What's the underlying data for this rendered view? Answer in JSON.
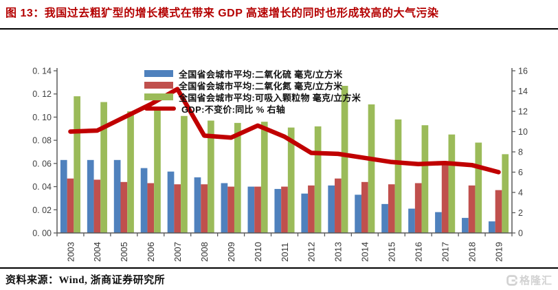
{
  "header": {
    "title": "图 13：我国过去粗犷型的增长模式在带来 GDP 高速增长的同时也形成较高的大气污染",
    "title_color": "#b40000"
  },
  "footer": {
    "source": "资料来源：Wind, 浙商证券研究所",
    "logo_text": "格隆汇"
  },
  "chart_data": {
    "type": "bar",
    "title": "图 13：我国过去粗犷型的增长模式在带来 GDP 高速增长的同时也形成较高的大气污染",
    "categories": [
      "2003",
      "2004",
      "2005",
      "2006",
      "2007",
      "2008",
      "2009",
      "2010",
      "2011",
      "2012",
      "2013",
      "2014",
      "2015",
      "2016",
      "2017",
      "2018",
      "2019"
    ],
    "series": [
      {
        "name": "全国省会城市平均:二氧化硫 毫克/立方米",
        "type": "bar",
        "axis": "left",
        "color": "#4f81bd",
        "values": [
          0.063,
          0.063,
          0.063,
          0.056,
          0.053,
          0.048,
          0.043,
          0.04,
          0.038,
          0.034,
          0.041,
          0.033,
          0.025,
          0.021,
          0.018,
          0.013,
          0.01
        ]
      },
      {
        "name": "全国省会城市平均:二氧化氮 毫克/立方米",
        "type": "bar",
        "axis": "left",
        "color": "#c0504d",
        "values": [
          0.047,
          0.046,
          0.044,
          0.043,
          0.042,
          0.042,
          0.04,
          0.04,
          0.04,
          0.041,
          0.047,
          0.044,
          0.042,
          0.043,
          0.06,
          0.041,
          0.037
        ]
      },
      {
        "name": "全国省会城市平均:可吸入颗粒物 毫克/立方米",
        "type": "bar",
        "axis": "left",
        "color": "#9bbb59",
        "values": [
          0.118,
          0.113,
          0.105,
          0.109,
          0.101,
          0.097,
          0.095,
          0.096,
          0.091,
          0.092,
          0.127,
          0.111,
          0.098,
          0.093,
          0.085,
          0.078,
          0.068
        ]
      },
      {
        "name": "GDP:不变价:同比 % 右轴",
        "type": "line",
        "axis": "right",
        "color": "#c00000",
        "values": [
          10.0,
          10.1,
          11.4,
          12.7,
          14.2,
          9.6,
          9.4,
          10.6,
          9.5,
          7.9,
          7.8,
          7.4,
          7.0,
          6.8,
          6.9,
          6.7,
          6.0
        ]
      }
    ],
    "left_axis": {
      "min": 0,
      "max": 0.14,
      "tick_labels": [
        "0. 00",
        "0. 02",
        "0. 04",
        "0. 06",
        "0. 08",
        "0. 10",
        "0. 12",
        "0. 14"
      ]
    },
    "right_axis": {
      "min": 0,
      "max": 16,
      "tick_labels": [
        "0",
        "2",
        "4",
        "6",
        "8",
        "10",
        "12",
        "14",
        "16"
      ]
    },
    "legend_position": "top",
    "grid": false,
    "colors": {
      "axis": "#595959",
      "tick_text": "#3f3f3f"
    }
  }
}
